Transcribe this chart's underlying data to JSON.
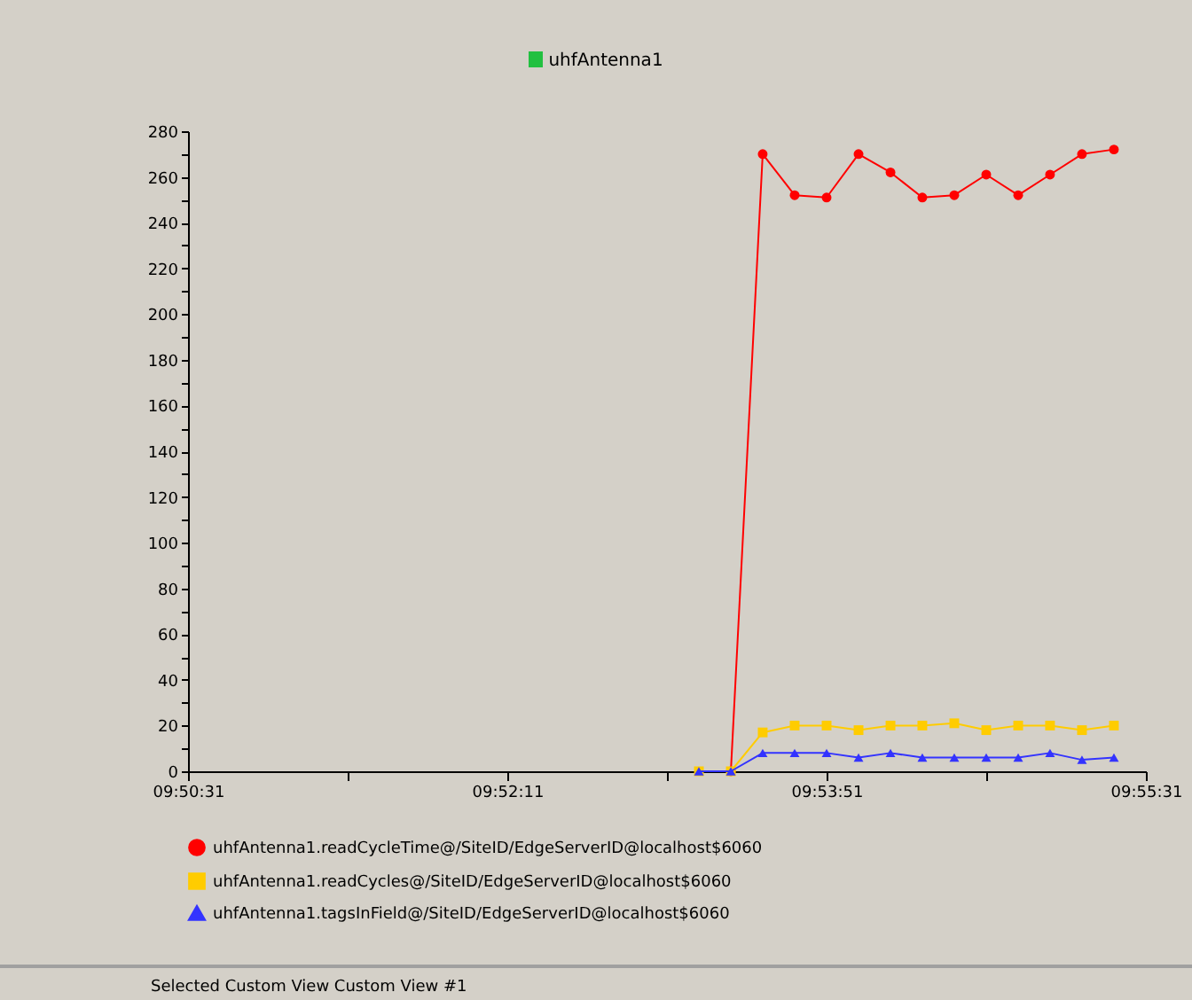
{
  "chart_data": {
    "type": "line",
    "title": "uhfAntenna1",
    "annotations": [
      "Selected Custom View Custom View #1"
    ],
    "x": [
      9.88639,
      9.88917,
      9.89194,
      9.89472,
      9.8975,
      9.90028,
      9.90306,
      9.90583,
      9.90861,
      9.91139,
      9.91417,
      9.91694,
      9.91972,
      9.9225
    ],
    "series": [
      {
        "name": "uhfAntenna1.readCycleTime@/SiteID/EdgeServerID@localhost$6060",
        "color": "#ff0000",
        "marker": "circle",
        "values": [
          null,
          0,
          270,
          252,
          251,
          270,
          262,
          251,
          252,
          261,
          252,
          261,
          270,
          272
        ]
      },
      {
        "name": "uhfAntenna1.readCycles@/SiteID/EdgeServerID@localhost$6060",
        "color": "#ffcc00",
        "marker": "square",
        "values": [
          0,
          0,
          17,
          20,
          20,
          18,
          20,
          20,
          21,
          18,
          20,
          20,
          18,
          20
        ]
      },
      {
        "name": "uhfAntenna1.tagsInField@/SiteID/EdgeServerID@localhost$6060",
        "color": "#3333ff",
        "marker": "triangle",
        "values": [
          0,
          0,
          8,
          8,
          8,
          6,
          8,
          6,
          6,
          6,
          6,
          8,
          5,
          6
        ]
      }
    ],
    "xlim": [
      9.84194,
      9.92528
    ],
    "xticks": [
      {
        "value": 9.84194,
        "label": "09:50:31"
      },
      {
        "value": 9.85583,
        "label": null
      },
      {
        "value": 9.86972,
        "label": "09:52:11"
      },
      {
        "value": 9.88361,
        "label": null
      },
      {
        "value": 9.8975,
        "label": "09:53:51"
      },
      {
        "value": 9.91139,
        "label": null
      },
      {
        "value": 9.92528,
        "label": "09:55:31"
      }
    ],
    "ylim": [
      0,
      280
    ],
    "yticks": [
      0,
      {
        "value": 10,
        "label": null
      },
      20,
      {
        "value": 30,
        "label": null
      },
      40,
      {
        "value": 50,
        "label": null
      },
      60,
      {
        "value": 70,
        "label": null
      },
      80,
      {
        "value": 90,
        "label": null
      },
      100,
      {
        "value": 110,
        "label": null
      },
      120,
      {
        "value": 130,
        "label": null
      },
      140,
      {
        "value": 150,
        "label": null
      },
      160,
      {
        "value": 170,
        "label": null
      },
      180,
      {
        "value": 190,
        "label": null
      },
      200,
      {
        "value": 210,
        "label": null
      },
      220,
      {
        "value": 230,
        "label": null
      },
      240,
      {
        "value": 250,
        "label": null
      },
      260,
      {
        "value": 270,
        "label": null
      },
      280
    ],
    "legend": "bottom",
    "grid": false
  }
}
